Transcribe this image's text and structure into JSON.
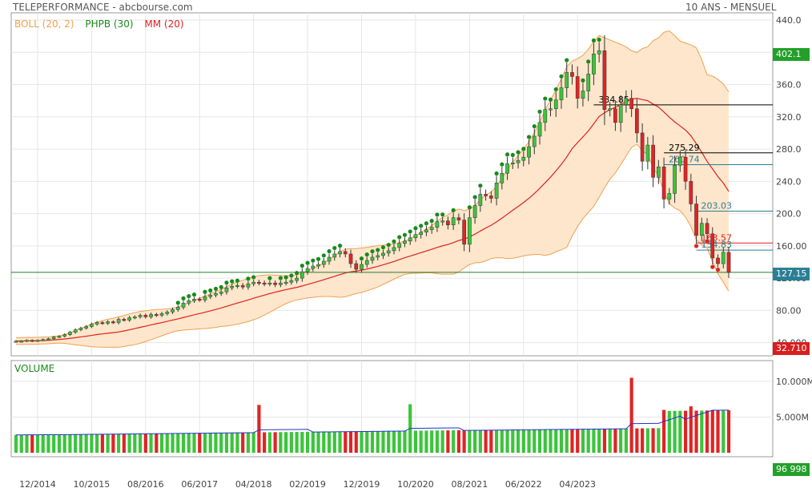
{
  "header": {
    "title": "TELEPERFORMANCE - abcbourse.com",
    "period": "10 ANS - MENSUEL"
  },
  "legend": [
    {
      "label": "BOLL (20, 2)",
      "color": "#f0a050"
    },
    {
      "label": "PHPB (30)",
      "color": "#1a8a1a"
    },
    {
      "label": "MM (20)",
      "color": "#e02020"
    }
  ],
  "volume_panel": {
    "label": "VOLUME"
  },
  "tags": {
    "last_high": "402.1",
    "last_close": "127.15",
    "last_low": "32.710",
    "last_volume": "96 998"
  },
  "colors": {
    "up": "#3cc43c",
    "down": "#e02424",
    "boll_fill": "#fde6cc",
    "boll_line": "#f0a050",
    "mm": "#e02020",
    "phpb": "#1a8a1a",
    "tag_green": "#22a02a",
    "tag_teal": "#2a7f94",
    "tag_red": "#d81e1e",
    "volume_avg": "#2233cc"
  },
  "chart_data": [
    {
      "type": "candlestick",
      "title": "TELEPERFORMANCE",
      "period": "10 ANS - MENSUEL",
      "ylim": [
        32.71,
        440
      ],
      "y_ticks": [
        "40.000",
        "80.00",
        "120.00",
        "160.00",
        "200.0",
        "240.0",
        "280.0",
        "320.0",
        "360.0",
        "400.0",
        "440.0"
      ],
      "x_ticks": [
        "12/2014",
        "10/2015",
        "08/2016",
        "06/2017",
        "04/2018",
        "02/2019",
        "12/2019",
        "10/2020",
        "08/2021",
        "06/2022",
        "04/2023"
      ],
      "indicators": [
        "BOLL (20, 2)",
        "PHPB (30)",
        "MM (20)"
      ],
      "last_high": 402.1,
      "last_close": 127.15,
      "levels": [
        {
          "label": "334.85",
          "value": 334.85,
          "color": "#000000"
        },
        {
          "label": "275.29",
          "value": 275.29,
          "color": "#000000"
        },
        {
          "label": "260.74",
          "value": 260.74,
          "color": "#2a7f94"
        },
        {
          "label": "203.03",
          "value": 203.03,
          "color": "#2a7f94"
        },
        {
          "label": "163.57",
          "value": 163.57,
          "color": "#e02020"
        },
        {
          "label": "154.83",
          "value": 154.83,
          "color": "#2a7f94"
        },
        {
          "label": "",
          "value": 127.15,
          "color": "#2a7a2a"
        }
      ],
      "close": [
        42,
        42,
        43,
        42,
        43,
        44,
        45,
        47,
        48,
        50,
        53,
        56,
        58,
        60,
        63,
        65,
        64,
        66,
        65,
        69,
        68,
        71,
        72,
        74,
        72,
        75,
        74,
        76,
        78,
        81,
        84,
        89,
        92,
        94,
        93,
        97,
        99,
        101,
        103,
        108,
        110,
        111,
        109,
        113,
        115,
        114,
        113,
        114,
        112,
        114,
        115,
        117,
        120,
        128,
        132,
        135,
        137,
        141,
        146,
        150,
        153,
        150,
        138,
        131,
        137,
        142,
        146,
        148,
        151,
        154,
        158,
        163,
        166,
        170,
        174,
        177,
        180,
        183,
        190,
        191,
        186,
        195,
        192,
        162,
        195,
        210,
        224,
        222,
        219,
        238,
        250,
        262,
        263,
        266,
        270,
        283,
        296,
        313,
        329,
        330,
        341,
        356,
        375,
        370,
        343,
        352,
        373,
        398,
        402,
        329,
        330,
        313,
        335,
        343,
        330,
        300,
        265,
        285,
        245,
        258,
        218,
        225,
        260,
        270,
        240,
        212,
        173,
        188,
        175,
        145,
        138,
        152,
        127.15
      ]
    },
    {
      "type": "bar",
      "title": "VOLUME",
      "ylim": [
        0,
        11000000
      ],
      "y_ticks": [
        "5.000M",
        "10.000M"
      ],
      "last_value": "96 998"
    }
  ]
}
